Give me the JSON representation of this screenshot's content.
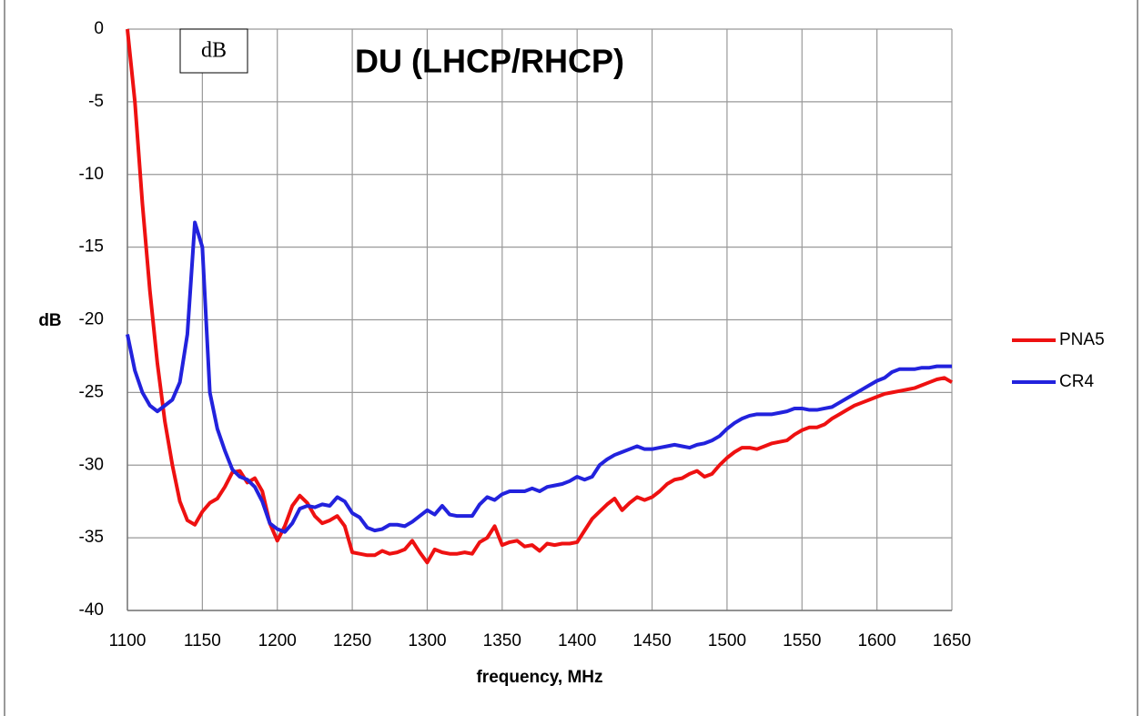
{
  "chart_data": {
    "type": "line",
    "title": "DU (LHCP/RHCP)",
    "annotation": "dB",
    "xlabel": "frequency, MHz",
    "ylabel": "dB",
    "x": [
      1100,
      1105,
      1110,
      1115,
      1120,
      1125,
      1130,
      1135,
      1140,
      1145,
      1150,
      1155,
      1160,
      1165,
      1170,
      1175,
      1180,
      1185,
      1190,
      1195,
      1200,
      1205,
      1210,
      1215,
      1220,
      1225,
      1230,
      1235,
      1240,
      1245,
      1250,
      1255,
      1260,
      1265,
      1270,
      1275,
      1280,
      1285,
      1290,
      1295,
      1300,
      1305,
      1310,
      1315,
      1320,
      1325,
      1330,
      1335,
      1340,
      1345,
      1350,
      1355,
      1360,
      1365,
      1370,
      1375,
      1380,
      1385,
      1390,
      1395,
      1400,
      1405,
      1410,
      1415,
      1420,
      1425,
      1430,
      1435,
      1440,
      1445,
      1450,
      1455,
      1460,
      1465,
      1470,
      1475,
      1480,
      1485,
      1490,
      1495,
      1500,
      1505,
      1510,
      1515,
      1520,
      1525,
      1530,
      1535,
      1540,
      1545,
      1550,
      1555,
      1560,
      1565,
      1570,
      1575,
      1580,
      1585,
      1590,
      1595,
      1600,
      1605,
      1610,
      1615,
      1620,
      1625,
      1630,
      1635,
      1640,
      1645,
      1650
    ],
    "series": [
      {
        "name": "PNA5",
        "color": "#ee1111",
        "values": [
          0,
          -5,
          -12,
          -18,
          -23,
          -27,
          -30,
          -32.5,
          -33.8,
          -34.1,
          -33.2,
          -32.6,
          -32.3,
          -31.5,
          -30.5,
          -30.4,
          -31.2,
          -30.9,
          -31.8,
          -34,
          -35.2,
          -34.2,
          -32.8,
          -32.1,
          -32.6,
          -33.5,
          -34,
          -33.8,
          -33.5,
          -34.2,
          -36,
          -36.1,
          -36.2,
          -36.2,
          -35.9,
          -36.1,
          -36,
          -35.8,
          -35.2,
          -36,
          -36.7,
          -35.8,
          -36,
          -36.1,
          -36.1,
          -36,
          -36.1,
          -35.3,
          -35,
          -34.2,
          -35.5,
          -35.3,
          -35.2,
          -35.6,
          -35.5,
          -35.9,
          -35.4,
          -35.5,
          -35.4,
          -35.4,
          -35.3,
          -34.5,
          -33.7,
          -33.2,
          -32.7,
          -32.3,
          -33.1,
          -32.6,
          -32.2,
          -32.4,
          -32.2,
          -31.8,
          -31.3,
          -31,
          -30.9,
          -30.6,
          -30.4,
          -30.8,
          -30.6,
          -30,
          -29.5,
          -29.1,
          -28.8,
          -28.8,
          -28.9,
          -28.7,
          -28.5,
          -28.4,
          -28.3,
          -27.9,
          -27.6,
          -27.4,
          -27.4,
          -27.2,
          -26.8,
          -26.5,
          -26.2,
          -25.9,
          -25.7,
          -25.5,
          -25.3,
          -25.1,
          -25,
          -24.9,
          -24.8,
          -24.7,
          -24.5,
          -24.3,
          -24.1,
          -24,
          -24.3
        ]
      },
      {
        "name": "CR4",
        "color": "#2222dd",
        "values": [
          -21,
          -23.5,
          -25,
          -25.9,
          -26.3,
          -25.9,
          -25.5,
          -24.3,
          -21,
          -13.3,
          -15,
          -25,
          -27.5,
          -29,
          -30.3,
          -30.8,
          -31,
          -31.5,
          -32.5,
          -34,
          -34.4,
          -34.6,
          -34,
          -33,
          -32.8,
          -32.9,
          -32.7,
          -32.8,
          -32.2,
          -32.5,
          -33.3,
          -33.6,
          -34.3,
          -34.5,
          -34.4,
          -34.1,
          -34.1,
          -34.2,
          -33.9,
          -33.5,
          -33.1,
          -33.4,
          -32.8,
          -33.4,
          -33.5,
          -33.5,
          -33.5,
          -32.7,
          -32.2,
          -32.4,
          -32,
          -31.8,
          -31.8,
          -31.8,
          -31.6,
          -31.8,
          -31.5,
          -31.4,
          -31.3,
          -31.1,
          -30.8,
          -31,
          -30.8,
          -30,
          -29.6,
          -29.3,
          -29.1,
          -28.9,
          -28.7,
          -28.9,
          -28.9,
          -28.8,
          -28.7,
          -28.6,
          -28.7,
          -28.8,
          -28.6,
          -28.5,
          -28.3,
          -28,
          -27.5,
          -27.1,
          -26.8,
          -26.6,
          -26.5,
          -26.5,
          -26.5,
          -26.4,
          -26.3,
          -26.1,
          -26.1,
          -26.2,
          -26.2,
          -26.1,
          -26,
          -25.7,
          -25.4,
          -25.1,
          -24.8,
          -24.5,
          -24.2,
          -24,
          -23.6,
          -23.4,
          -23.4,
          -23.4,
          -23.3,
          -23.3,
          -23.2,
          -23.2,
          -23.2
        ]
      }
    ],
    "xlim": [
      1100,
      1650
    ],
    "xticks": [
      1100,
      1150,
      1200,
      1250,
      1300,
      1350,
      1400,
      1450,
      1500,
      1550,
      1600,
      1650
    ],
    "ylim": [
      -40,
      0
    ],
    "yticks": [
      0,
      -5,
      -10,
      -15,
      -20,
      -25,
      -30,
      -35,
      -40
    ],
    "grid": true,
    "legend": "right"
  }
}
